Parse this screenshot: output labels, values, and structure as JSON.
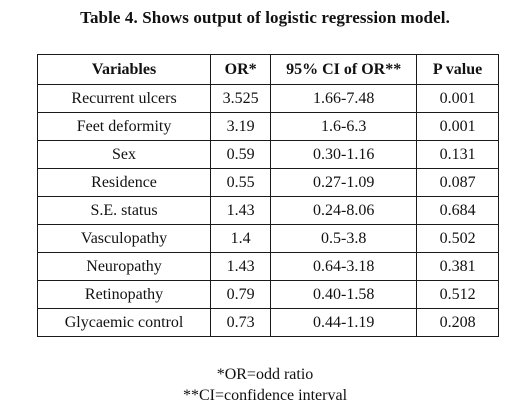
{
  "caption": "Table 4. Shows output of logistic regression model.",
  "table": {
    "headers": [
      "Variables",
      "OR*",
      "95% CI of OR**",
      "P value"
    ],
    "rows": [
      [
        "Recurrent ulcers",
        "3.525",
        "1.66-7.48",
        "0.001"
      ],
      [
        "Feet deformity",
        "3.19",
        "1.6-6.3",
        "0.001"
      ],
      [
        "Sex",
        "0.59",
        "0.30-1.16",
        "0.131"
      ],
      [
        "Residence",
        "0.55",
        "0.27-1.09",
        "0.087"
      ],
      [
        "S.E. status",
        "1.43",
        "0.24-8.06",
        "0.684"
      ],
      [
        "Vasculopathy",
        "1.4",
        "0.5-3.8",
        "0.502"
      ],
      [
        "Neuropathy",
        "1.43",
        "0.64-3.18",
        "0.381"
      ],
      [
        "Retinopathy",
        "0.79",
        "0.40-1.58",
        "0.512"
      ],
      [
        "Glycaemic control",
        "0.73",
        "0.44-1.19",
        "0.208"
      ]
    ]
  },
  "footnotes": [
    "*OR=odd ratio",
    "**CI=confidence interval"
  ]
}
